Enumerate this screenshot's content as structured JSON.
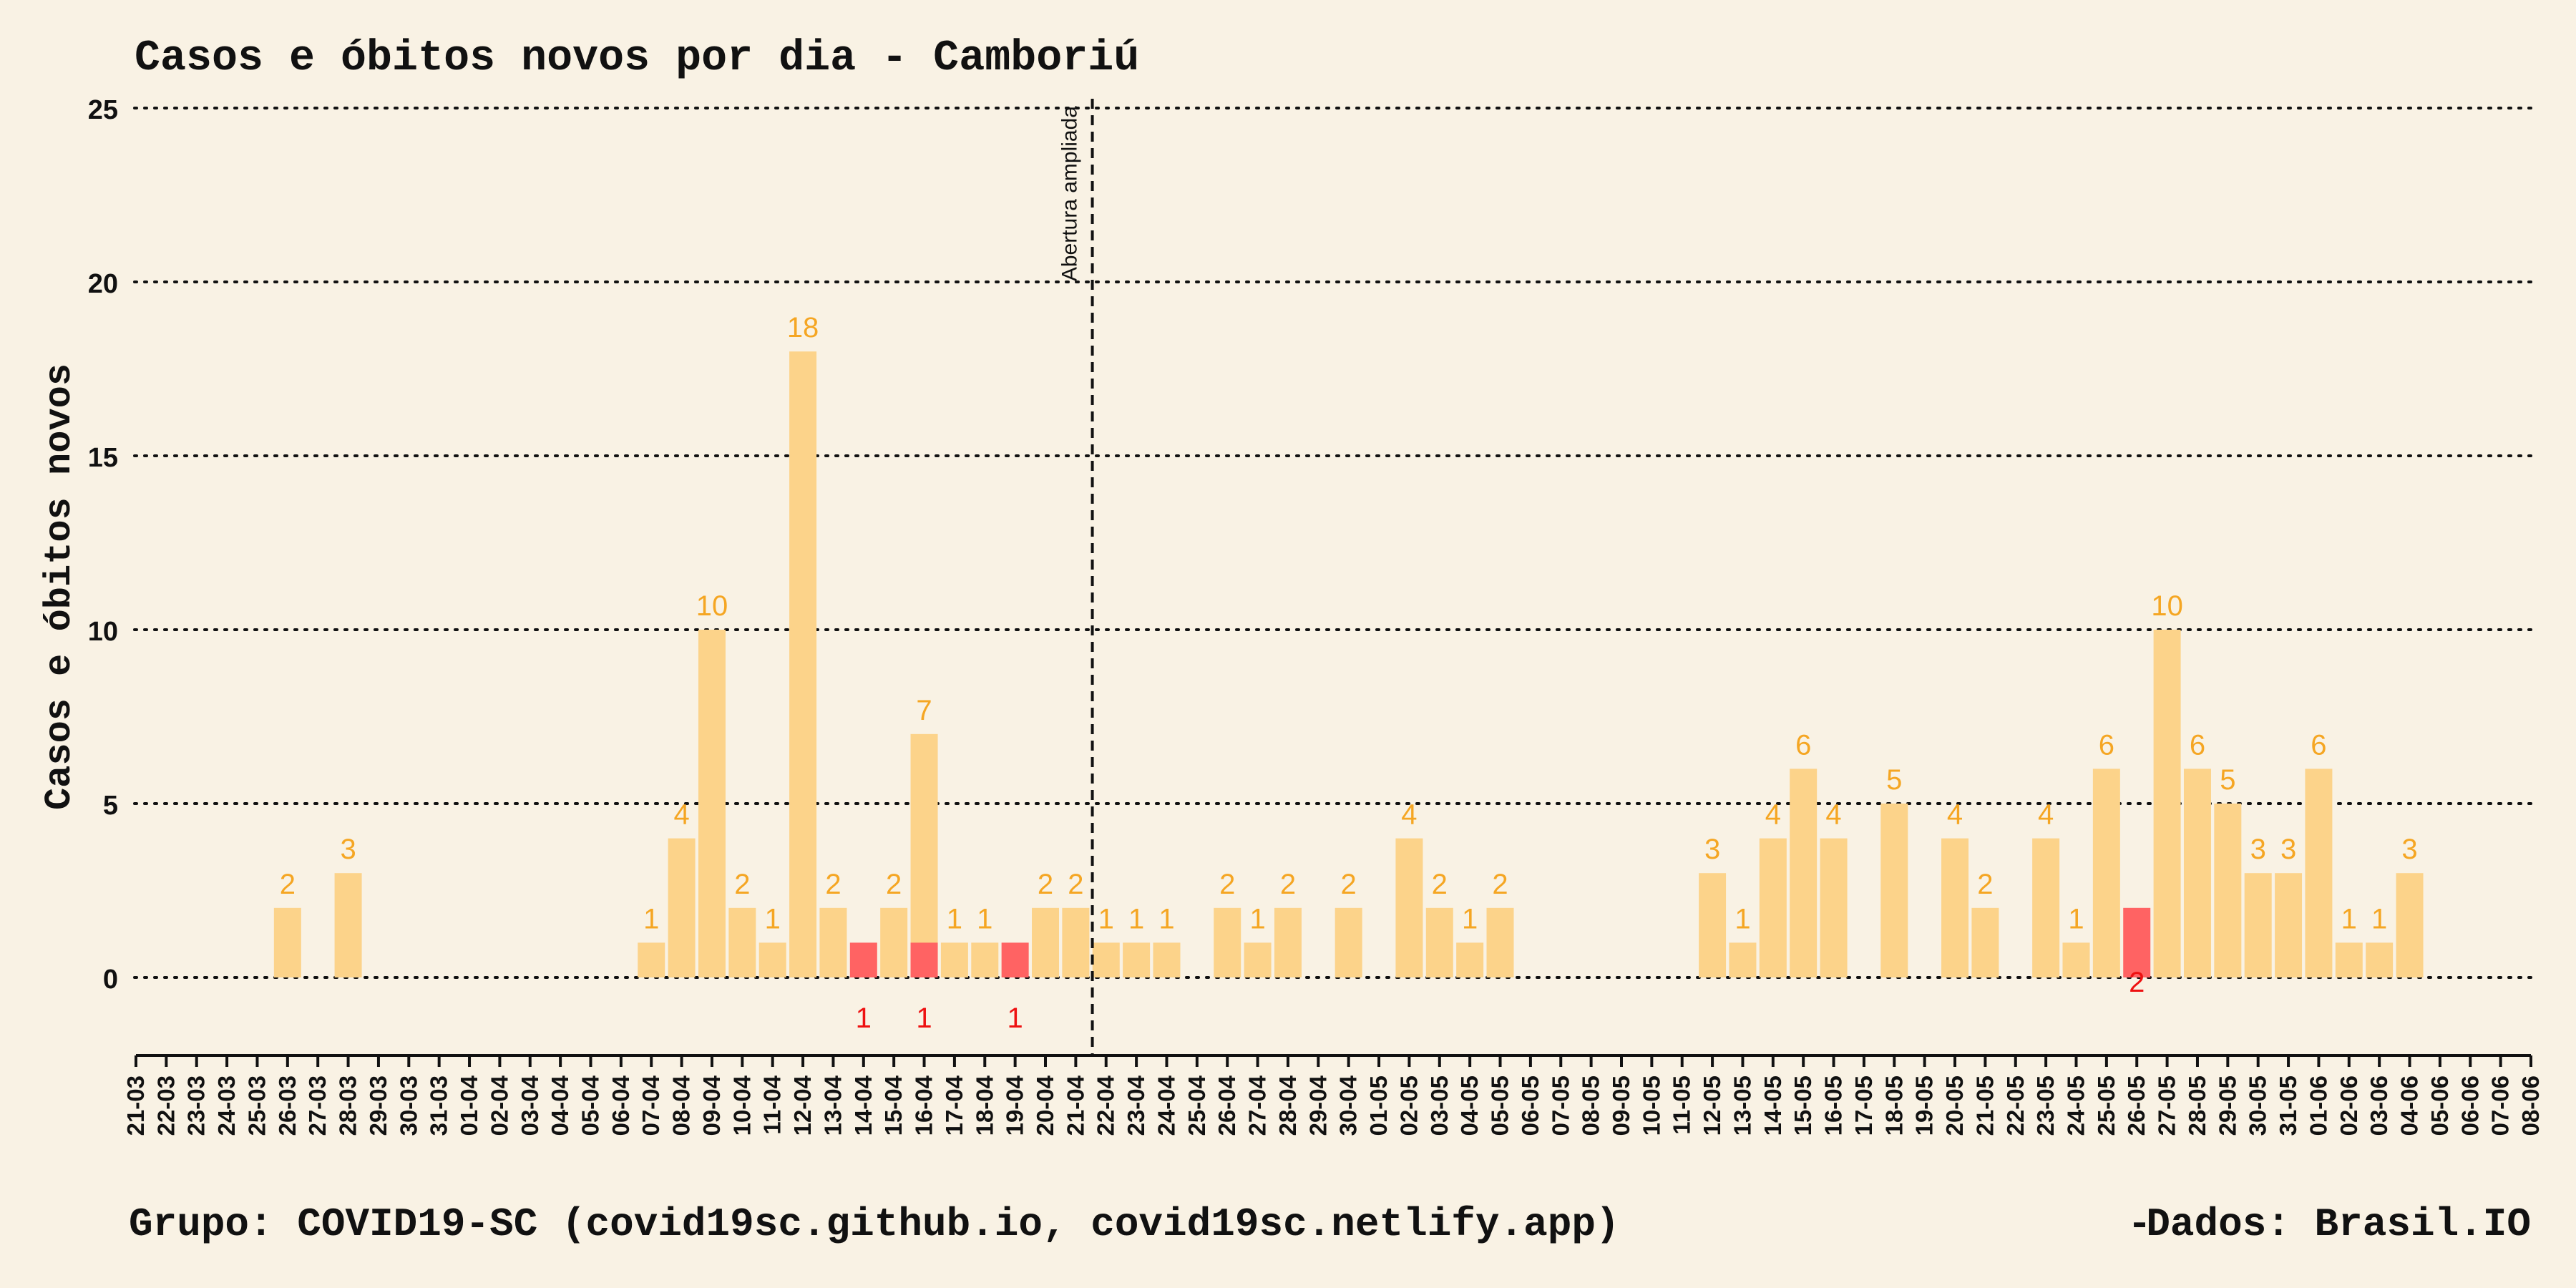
{
  "chart_data": {
    "type": "bar",
    "title": "Casos e óbitos novos por dia -  Camboriú",
    "ylabel": "Casos e óbitos novos",
    "xlabel": "",
    "ylim": [
      -2.2,
      25
    ],
    "yticks": [
      0,
      5,
      10,
      15,
      20,
      25
    ],
    "grid": "horizontal-dotted",
    "categories": [
      "21-03",
      "22-03",
      "23-03",
      "24-03",
      "25-03",
      "26-03",
      "27-03",
      "28-03",
      "29-03",
      "30-03",
      "31-03",
      "01-04",
      "02-04",
      "03-04",
      "04-04",
      "05-04",
      "06-04",
      "07-04",
      "08-04",
      "09-04",
      "10-04",
      "11-04",
      "12-04",
      "13-04",
      "14-04",
      "15-04",
      "16-04",
      "17-04",
      "18-04",
      "19-04",
      "20-04",
      "21-04",
      "22-04",
      "23-04",
      "24-04",
      "25-04",
      "26-04",
      "27-04",
      "28-04",
      "29-04",
      "30-04",
      "01-05",
      "02-05",
      "03-05",
      "04-05",
      "05-05",
      "06-05",
      "07-05",
      "08-05",
      "09-05",
      "10-05",
      "11-05",
      "12-05",
      "13-05",
      "14-05",
      "15-05",
      "16-05",
      "17-05",
      "18-05",
      "19-05",
      "20-05",
      "21-05",
      "22-05",
      "23-05",
      "24-05",
      "25-05",
      "26-05",
      "27-05",
      "28-05",
      "29-05",
      "30-05",
      "31-05",
      "01-06",
      "02-06",
      "03-06",
      "04-06",
      "05-06",
      "06-06",
      "07-06",
      "08-06"
    ],
    "series": [
      {
        "key": "casos",
        "color": "#fcd38a",
        "label_color": "#f5a623",
        "values": [
          0,
          0,
          0,
          0,
          0,
          2,
          0,
          3,
          0,
          0,
          0,
          0,
          0,
          0,
          0,
          0,
          0,
          1,
          4,
          10,
          2,
          1,
          18,
          2,
          0,
          2,
          7,
          1,
          1,
          0,
          2,
          2,
          1,
          1,
          1,
          0,
          2,
          1,
          2,
          0,
          2,
          0,
          4,
          2,
          1,
          2,
          0,
          0,
          0,
          0,
          0,
          0,
          3,
          1,
          4,
          6,
          4,
          0,
          5,
          0,
          4,
          2,
          0,
          4,
          1,
          6,
          0,
          10,
          6,
          5,
          3,
          3,
          6,
          1,
          1,
          3,
          0,
          0,
          0,
          0
        ]
      },
      {
        "key": "obitos",
        "color": "#ff6363",
        "label_color": "#ee1111",
        "values": [
          0,
          0,
          0,
          0,
          0,
          0,
          0,
          0,
          0,
          0,
          0,
          0,
          0,
          0,
          0,
          0,
          0,
          0,
          0,
          0,
          0,
          0,
          0,
          0,
          1,
          0,
          1,
          0,
          0,
          1,
          0,
          0,
          0,
          0,
          0,
          0,
          0,
          0,
          0,
          0,
          0,
          0,
          0,
          0,
          0,
          0,
          0,
          0,
          0,
          0,
          0,
          0,
          0,
          0,
          0,
          0,
          0,
          0,
          0,
          0,
          0,
          0,
          0,
          0,
          0,
          0,
          2,
          0,
          0,
          0,
          0,
          0,
          0,
          0,
          0,
          0,
          0,
          0,
          0,
          0
        ]
      }
    ],
    "annotations": [
      {
        "x": "22-04",
        "text": "Abertura ampliada",
        "style": "dashed-vertical-line"
      }
    ],
    "footer": {
      "left": "Grupo: COVID19-SC (covid19sc.github.io, covid19sc.netlify.app)",
      "separator": "-",
      "right": "Dados: Brasil.IO"
    }
  }
}
